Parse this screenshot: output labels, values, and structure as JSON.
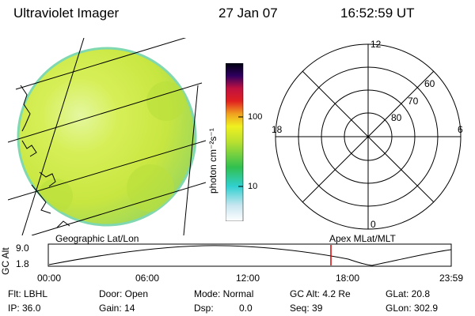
{
  "header": {
    "title": "Ultraviolet Imager",
    "date": "27 Jan 07",
    "time": "16:52:59 UT"
  },
  "colorbar": {
    "unit_label": "photon cm⁻²s⁻¹",
    "ticks": [
      "100",
      "10"
    ]
  },
  "polar_plot": {
    "mlt_labels": {
      "top": "12",
      "left": "18",
      "right": "6",
      "bottom": "0"
    },
    "lat_labels": [
      "60",
      "70",
      "80"
    ]
  },
  "panels": {
    "left_caption": "Geographic Lat/Lon",
    "right_caption": "Apex MLat/MLT"
  },
  "orbit_plot": {
    "y_label": "GC Alt",
    "y_ticks": [
      "9.0",
      "1.8"
    ],
    "x_ticks": [
      "00:00",
      "06:00",
      "12:00",
      "18:00",
      "23:59"
    ],
    "marker_color": "#d40000"
  },
  "status": {
    "flt": "Flt: LBHL",
    "ip": "IP: 36.0",
    "door": "Door: Open",
    "gain": "Gain: 14",
    "mode": "Mode: Normal",
    "dsp_label": "Dsp:",
    "dsp_value": "0.0",
    "gc_alt": "GC Alt: 4.2 Re",
    "seq": "Seq: 39",
    "glat": "GLat: 20.8",
    "glon": "GLon: 302.9"
  }
}
